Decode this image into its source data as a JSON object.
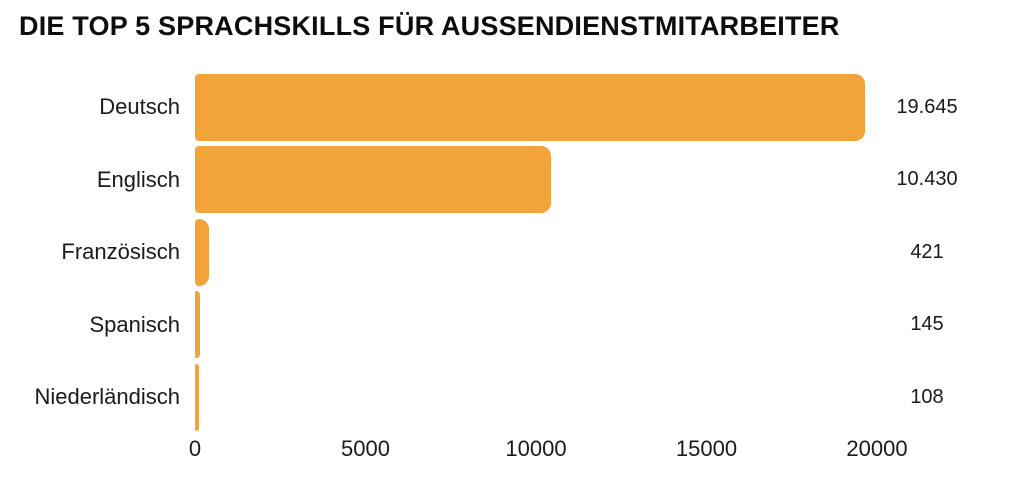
{
  "title": "DIE TOP 5 SPRACHSKILLS FÜR AUSSENDIENSTMITARBEITER",
  "chart_data": {
    "type": "bar",
    "orientation": "horizontal",
    "title": "DIE TOP 5 SPRACHSKILLS FÜR AUSSENDIENSTMITARBEITER",
    "categories": [
      "Deutsch",
      "Englisch",
      "Französisch",
      "Spanisch",
      "Niederländisch"
    ],
    "values": [
      19645,
      10430,
      421,
      145,
      108
    ],
    "value_labels": [
      "19.645",
      "10.430",
      "421",
      "145",
      "108"
    ],
    "xlabel": "",
    "ylabel": "",
    "xlim": [
      0,
      20000
    ],
    "x_ticks": [
      0,
      5000,
      10000,
      15000,
      20000
    ],
    "x_tick_labels": [
      "0",
      "5000",
      "10000",
      "15000",
      "20000"
    ],
    "grid": false,
    "legend": false,
    "bar_color": "#f2a33a",
    "text_color": "#1a1a1a",
    "background_color": "#ffffff"
  }
}
